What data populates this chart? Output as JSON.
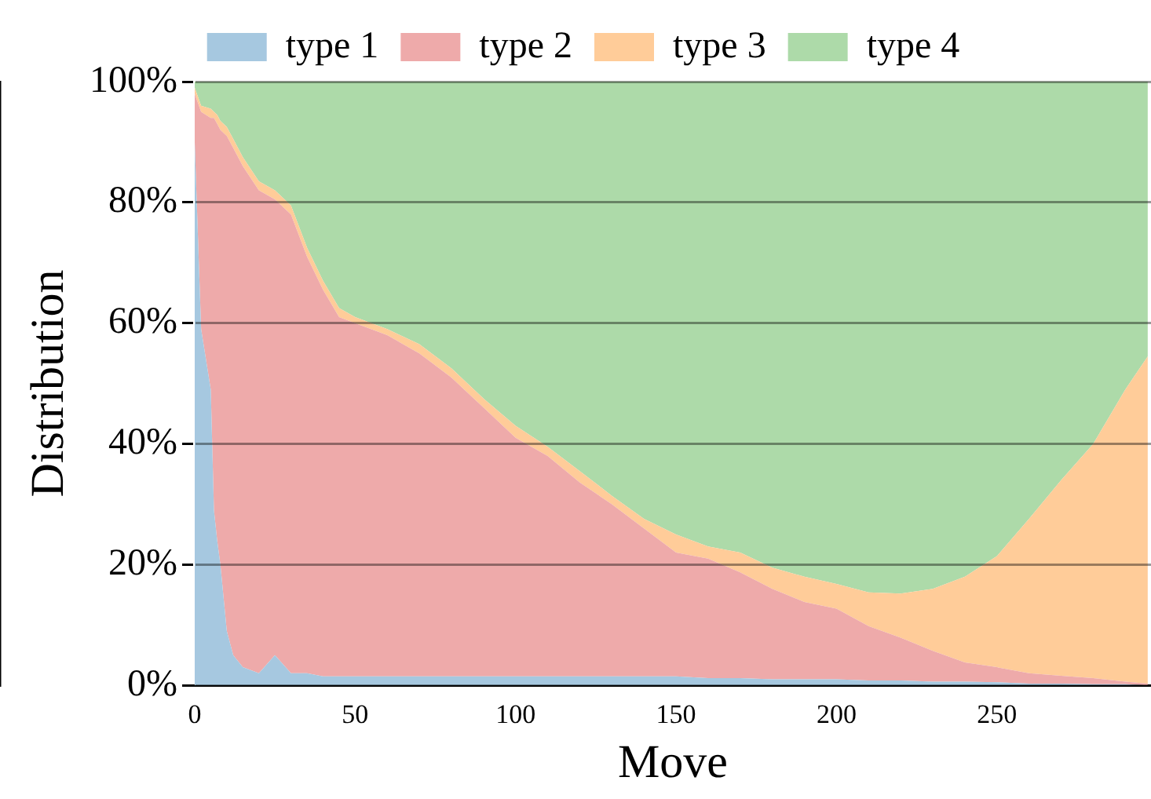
{
  "chart_data": {
    "type": "area",
    "stacked": true,
    "xlabel": "Move",
    "ylabel": "Distribution",
    "x": [
      0,
      2,
      5,
      6,
      7,
      8,
      10,
      12,
      15,
      20,
      25,
      30,
      35,
      40,
      45,
      50,
      60,
      70,
      80,
      90,
      100,
      110,
      120,
      130,
      140,
      150,
      160,
      170,
      180,
      190,
      200,
      210,
      220,
      230,
      240,
      250,
      260,
      270,
      280,
      290,
      297
    ],
    "xlim": [
      0,
      298
    ],
    "xticks": [
      0,
      50,
      100,
      150,
      200,
      250
    ],
    "ylim": [
      0,
      100
    ],
    "yticks": [
      {
        "value": 0,
        "label": "0%"
      },
      {
        "value": 20,
        "label": "20%"
      },
      {
        "value": 40,
        "label": "40%"
      },
      {
        "value": 60,
        "label": "60%"
      },
      {
        "value": 80,
        "label": "80%"
      },
      {
        "value": 100,
        "label": "100%"
      }
    ],
    "grid": "y",
    "legend": "top",
    "series": [
      {
        "name": "type 1",
        "color": "#a6c8e0",
        "values": [
          90,
          59,
          49,
          29,
          24,
          20,
          9,
          5,
          3,
          2,
          5,
          2,
          2,
          1.5,
          1.5,
          1.5,
          1.5,
          1.5,
          1.5,
          1.5,
          1.5,
          1.5,
          1.5,
          1.5,
          1.5,
          1.5,
          1.2,
          1.2,
          1,
          1,
          1,
          0.8,
          0.8,
          0.6,
          0.6,
          0.5,
          0.3,
          0.3,
          0.2,
          0.2,
          0
        ]
      },
      {
        "name": "type 2",
        "color": "#eeaaaa",
        "values": [
          8,
          36,
          45,
          65,
          69,
          72,
          82,
          84,
          83,
          80,
          75.5,
          76,
          69,
          64,
          59.5,
          58.5,
          56.5,
          53.5,
          49.5,
          44.5,
          39.5,
          36.5,
          32.1,
          28.5,
          24.5,
          20.5,
          19.8,
          17.5,
          15,
          12.8,
          11.7,
          9,
          7.1,
          5.1,
          3.2,
          2.5,
          1.7,
          1.3,
          1,
          0.4,
          0.3
        ]
      },
      {
        "name": "type 3",
        "color": "#ffcc99",
        "values": [
          1,
          1,
          1.5,
          1,
          1.5,
          1.5,
          1.5,
          1.5,
          1.5,
          1.5,
          1.5,
          1.5,
          1.5,
          1.5,
          1.5,
          1,
          1,
          1.5,
          1.5,
          1.5,
          2,
          1.5,
          1.9,
          1.4,
          1.6,
          3,
          2,
          3.3,
          3.5,
          4.2,
          4.1,
          5.6,
          7.3,
          10.3,
          14.2,
          18.4,
          25.6,
          32.4,
          38.8,
          48.4,
          54.2
        ]
      },
      {
        "name": "type 4",
        "color": "#addaa9",
        "values": [
          1,
          4,
          4.5,
          5,
          5.5,
          6.5,
          7.5,
          9.5,
          12.5,
          16.5,
          18,
          20.5,
          27.5,
          33,
          37.5,
          39,
          41,
          43.5,
          47.5,
          52.5,
          57,
          60.5,
          64.5,
          68.6,
          72.4,
          75,
          77,
          78,
          80.5,
          82,
          83.2,
          84.6,
          84.8,
          84,
          82,
          78.6,
          72.4,
          66,
          60,
          51,
          45.5
        ]
      }
    ]
  }
}
